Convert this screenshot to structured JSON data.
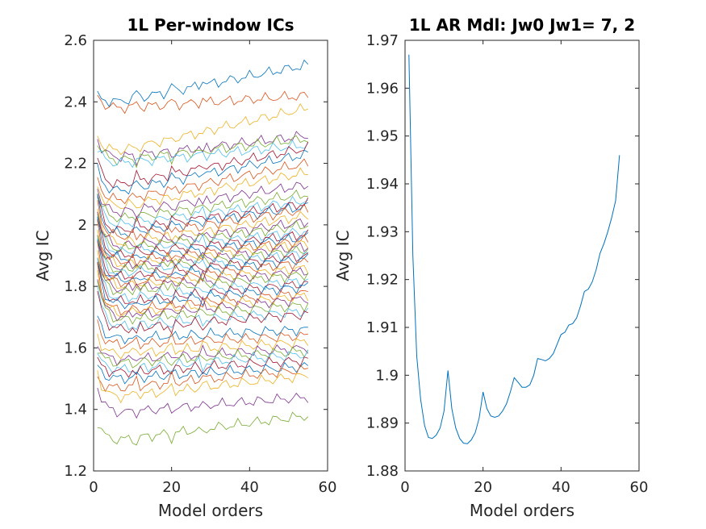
{
  "chart_data": [
    {
      "type": "line",
      "title": "1L Per-window ICs",
      "xlabel": "Model orders",
      "ylabel": "Avg IC",
      "xlim": [
        0,
        60
      ],
      "ylim": [
        1.2,
        2.6
      ],
      "xticks": [
        0,
        20,
        40,
        60
      ],
      "yticks": [
        1.2,
        1.4,
        1.6,
        1.8,
        2,
        2.2,
        2.4,
        2.6
      ],
      "x": [
        1,
        55
      ],
      "series_note_values": "start/min/end levels per window curve, approximate",
      "series_levels": [
        [
          2.42,
          2.4,
          2.52
        ],
        [
          2.42,
          2.38,
          2.42
        ],
        [
          2.29,
          2.24,
          2.38
        ],
        [
          2.28,
          2.22,
          2.29
        ],
        [
          2.27,
          2.21,
          2.28
        ],
        [
          2.25,
          2.2,
          2.26
        ],
        [
          2.21,
          2.13,
          2.25
        ],
        [
          2.18,
          2.11,
          2.23
        ],
        [
          2.15,
          2.08,
          2.2
        ],
        [
          2.13,
          2.06,
          2.17
        ],
        [
          2.12,
          2.04,
          2.13
        ],
        [
          2.11,
          2.02,
          2.1
        ],
        [
          2.1,
          2.0,
          2.08
        ],
        [
          2.09,
          1.98,
          2.07
        ],
        [
          2.08,
          1.97,
          2.06
        ],
        [
          2.07,
          1.96,
          2.05
        ],
        [
          2.06,
          1.94,
          2.03
        ],
        [
          2.05,
          1.93,
          2.01
        ],
        [
          2.04,
          1.92,
          2.0
        ],
        [
          2.03,
          1.91,
          1.98
        ],
        [
          2.02,
          1.9,
          1.97
        ],
        [
          2.01,
          1.89,
          1.96
        ],
        [
          2.0,
          1.88,
          1.95
        ],
        [
          1.99,
          1.87,
          1.94
        ],
        [
          1.98,
          1.86,
          1.93
        ],
        [
          1.97,
          1.85,
          1.92
        ],
        [
          1.96,
          1.84,
          1.91
        ],
        [
          1.95,
          1.83,
          1.9
        ],
        [
          1.94,
          1.82,
          1.89
        ],
        [
          1.93,
          1.81,
          1.88
        ],
        [
          1.92,
          1.8,
          1.86
        ],
        [
          1.91,
          1.79,
          1.85
        ],
        [
          1.9,
          1.78,
          1.84
        ],
        [
          1.89,
          1.76,
          1.82
        ],
        [
          1.88,
          1.75,
          1.81
        ],
        [
          1.87,
          1.74,
          1.8
        ],
        [
          1.86,
          1.72,
          1.78
        ],
        [
          1.85,
          1.71,
          1.77
        ],
        [
          1.84,
          1.7,
          1.76
        ],
        [
          1.83,
          1.69,
          1.74
        ],
        [
          1.8,
          1.67,
          1.72
        ],
        [
          1.78,
          1.66,
          1.71
        ],
        [
          1.7,
          1.63,
          1.66
        ],
        [
          1.68,
          1.61,
          1.64
        ],
        [
          1.64,
          1.58,
          1.62
        ],
        [
          1.62,
          1.56,
          1.6
        ],
        [
          1.6,
          1.55,
          1.59
        ],
        [
          1.58,
          1.53,
          1.58
        ],
        [
          1.56,
          1.52,
          1.56
        ],
        [
          1.54,
          1.5,
          1.54
        ],
        [
          1.5,
          1.47,
          1.53
        ],
        [
          1.52,
          1.44,
          1.51
        ],
        [
          1.48,
          1.39,
          1.44
        ],
        [
          1.36,
          1.3,
          1.38
        ]
      ],
      "colors": [
        "#0072BD",
        "#D95319",
        "#EDB120",
        "#7E2F8E",
        "#77AC30",
        "#4DBEEE",
        "#A2142F"
      ]
    },
    {
      "type": "line",
      "title": "1L AR Mdl: Jw0 Jw1= 7, 2",
      "xlabel": "Model orders",
      "ylabel": "Avg IC",
      "xlim": [
        0,
        60
      ],
      "ylim": [
        1.88,
        1.97
      ],
      "xticks": [
        0,
        20,
        40,
        60
      ],
      "yticks": [
        1.88,
        1.89,
        1.9,
        1.91,
        1.92,
        1.93,
        1.94,
        1.95,
        1.96,
        1.97
      ],
      "color": "#0072BD",
      "series": [
        {
          "x": [
            1,
            2,
            3,
            4,
            5,
            6,
            7,
            8,
            9,
            10,
            11,
            12,
            13,
            14,
            15,
            16,
            17,
            18,
            19,
            20,
            21,
            22,
            23,
            24,
            25,
            26,
            27,
            28,
            29,
            30,
            31,
            32,
            33,
            34,
            35,
            36,
            37,
            38,
            39,
            40,
            41,
            42,
            43,
            44,
            45,
            46,
            47,
            48,
            49,
            50,
            51,
            52,
            53,
            54,
            55
          ],
          "values": [
            1.967,
            1.925,
            1.904,
            1.895,
            1.8895,
            1.887,
            1.8868,
            1.8875,
            1.889,
            1.8925,
            1.901,
            1.893,
            1.889,
            1.8868,
            1.8858,
            1.8857,
            1.8865,
            1.888,
            1.891,
            1.8965,
            1.893,
            1.8915,
            1.8912,
            1.8915,
            1.8925,
            1.894,
            1.8965,
            1.8995,
            1.8985,
            1.8975,
            1.8975,
            1.898,
            1.9,
            1.9035,
            1.9033,
            1.903,
            1.9035,
            1.9045,
            1.9065,
            1.9085,
            1.909,
            1.9105,
            1.9108,
            1.912,
            1.9145,
            1.9175,
            1.918,
            1.9195,
            1.922,
            1.9255,
            1.9275,
            1.93,
            1.933,
            1.9365,
            1.946
          ]
        }
      ]
    }
  ]
}
